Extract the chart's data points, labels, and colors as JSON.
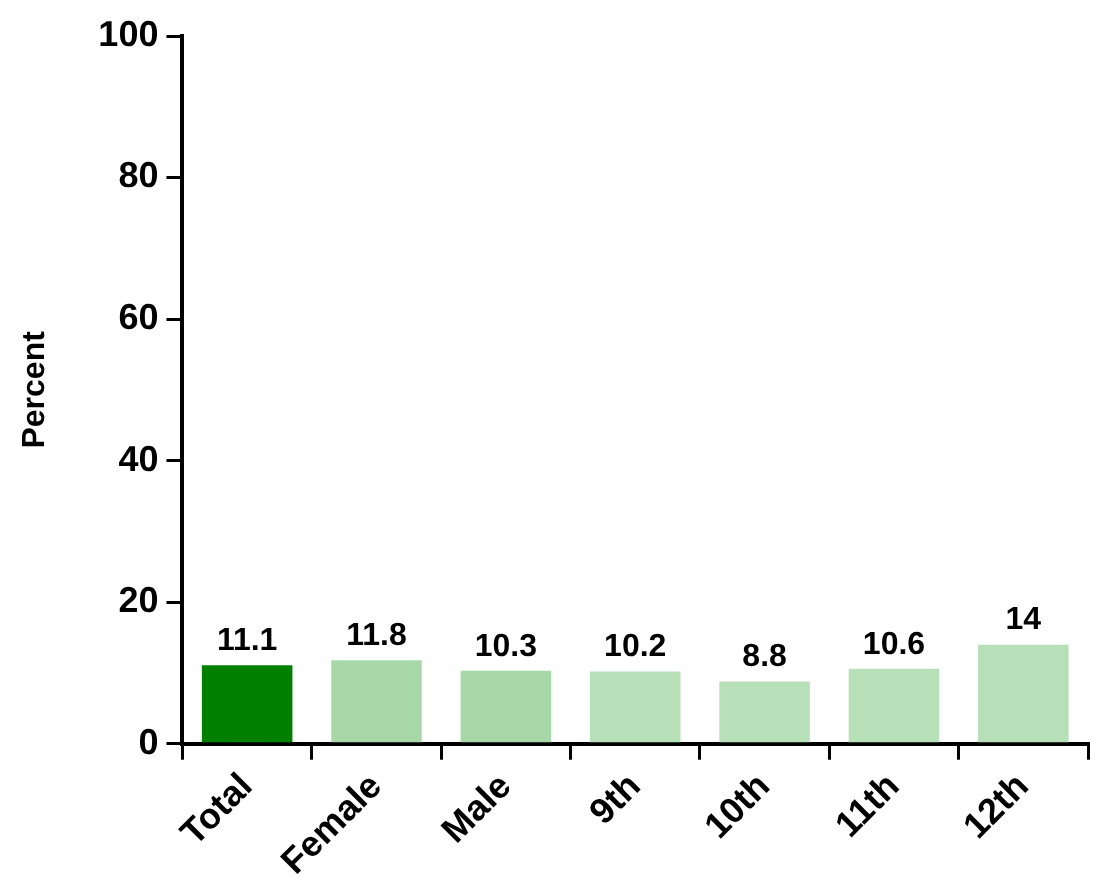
{
  "chart_data": {
    "type": "bar",
    "ylabel": "Percent",
    "categories": [
      "Total",
      "Female",
      "Male",
      "9th",
      "10th",
      "11th",
      "12th"
    ],
    "values": [
      11.1,
      11.8,
      10.3,
      10.2,
      8.8,
      10.6,
      14
    ],
    "colors": [
      "#008000",
      "#a8d8a8",
      "#a8d8a8",
      "#b8e0b8",
      "#b8e0b8",
      "#b8e0b8",
      "#b8e0b8"
    ],
    "ylim": [
      0,
      100
    ],
    "yticks": [
      0,
      20,
      40,
      60,
      80,
      100
    ],
    "grid": false,
    "legend": false,
    "data_labels": true
  }
}
